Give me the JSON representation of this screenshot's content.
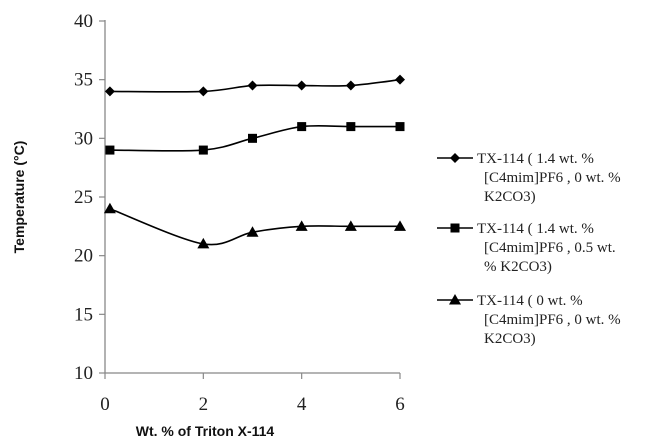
{
  "chart_data": {
    "type": "line",
    "title": "",
    "xlabel": "Wt. % of Triton X-114",
    "ylabel": "Temperature (°C)",
    "xlim": [
      0,
      6
    ],
    "ylim": [
      10,
      40
    ],
    "xticks": [
      "0",
      "2",
      "4",
      "6"
    ],
    "yticks": [
      "10",
      "15",
      "20",
      "25",
      "30",
      "35",
      "40"
    ],
    "grid": false,
    "legend_position": "right",
    "series": [
      {
        "name_lines": [
          "TX-114 ( 1.4 wt. %",
          "[C4mim]PF6 , 0 wt. %",
          "K2CO3)"
        ],
        "marker": "diamond",
        "color": "#000000",
        "x": [
          0.1,
          2,
          3,
          4,
          5,
          6
        ],
        "y": [
          34,
          34,
          34.5,
          34.5,
          34.5,
          35
        ]
      },
      {
        "name_lines": [
          "TX-114 ( 1.4 wt. %",
          "[C4mim]PF6 , 0.5 wt.",
          "% K2CO3)"
        ],
        "marker": "square",
        "color": "#000000",
        "x": [
          0.1,
          2,
          3,
          4,
          5,
          6
        ],
        "y": [
          29,
          29,
          30,
          31,
          31,
          31
        ]
      },
      {
        "name_lines": [
          "TX-114 ( 0 wt. %",
          "[C4mim]PF6 , 0 wt. %",
          "K2CO3)"
        ],
        "marker": "triangle",
        "color": "#000000",
        "x": [
          0.1,
          2,
          3,
          4,
          5,
          6
        ],
        "y": [
          24,
          21,
          22,
          22.5,
          22.5,
          22.5
        ]
      }
    ]
  }
}
